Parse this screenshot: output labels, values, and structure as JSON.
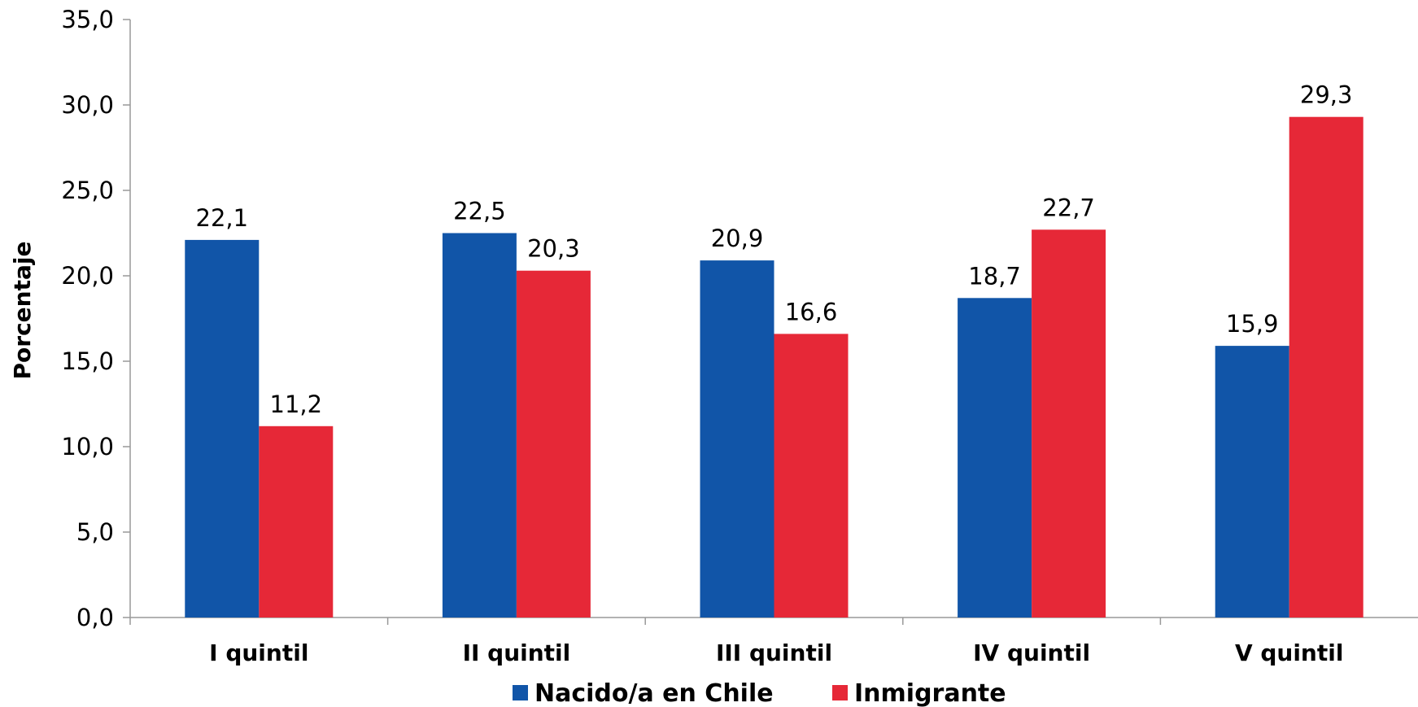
{
  "chart_data": {
    "type": "bar",
    "categories": [
      "I quintil",
      "II quintil",
      "III quintil",
      "IV quintil",
      "V quintil"
    ],
    "series": [
      {
        "name": "Nacido/a en Chile",
        "color": "#1155A8",
        "values": [
          22.1,
          22.5,
          20.9,
          18.7,
          15.9
        ]
      },
      {
        "name": "Inmigrante",
        "color": "#E62837",
        "values": [
          11.2,
          20.3,
          16.6,
          22.7,
          29.3
        ]
      }
    ],
    "ylabel": "Porcentaje",
    "xlabel": "",
    "ylim": [
      0,
      35
    ],
    "ytick_step": 5,
    "yticks": [
      "0,0",
      "5,0",
      "10,0",
      "15,0",
      "20,0",
      "25,0",
      "30,0",
      "35,0"
    ],
    "data_labels": [
      [
        "22,1",
        "22,5",
        "20,9",
        "18,7",
        "15,9"
      ],
      [
        "11,2",
        "20,3",
        "16,6",
        "22,7",
        "29,3"
      ]
    ],
    "grid": false,
    "legend_position": "bottom"
  }
}
